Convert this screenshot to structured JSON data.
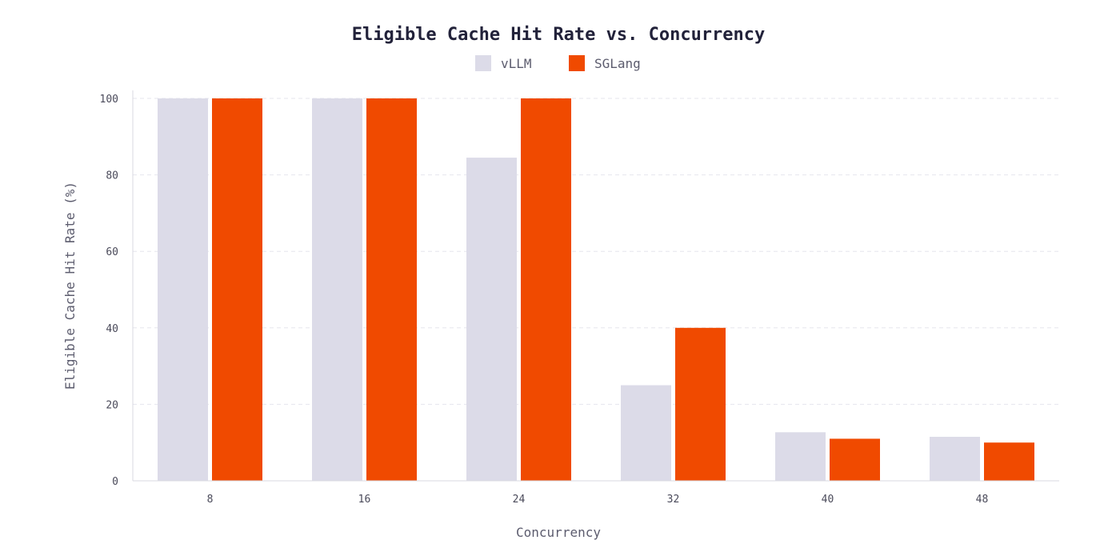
{
  "chart_data": {
    "type": "bar",
    "title": "Eligible Cache Hit Rate vs. Concurrency",
    "xlabel": "Concurrency",
    "ylabel": "Eligible Cache Hit Rate (%)",
    "categories": [
      "8",
      "16",
      "24",
      "32",
      "40",
      "48"
    ],
    "series": [
      {
        "name": "vLLM",
        "color": "#dcdbe8",
        "values": [
          100,
          100,
          84.5,
          25,
          12.7,
          11.5
        ]
      },
      {
        "name": "SGLang",
        "color": "#f04a00",
        "values": [
          100,
          100,
          100,
          40,
          11,
          10
        ]
      }
    ],
    "ylim": [
      0,
      100
    ],
    "yticks": [
      0,
      20,
      40,
      60,
      80,
      100
    ],
    "grid": true,
    "legend_position": "top-center"
  }
}
